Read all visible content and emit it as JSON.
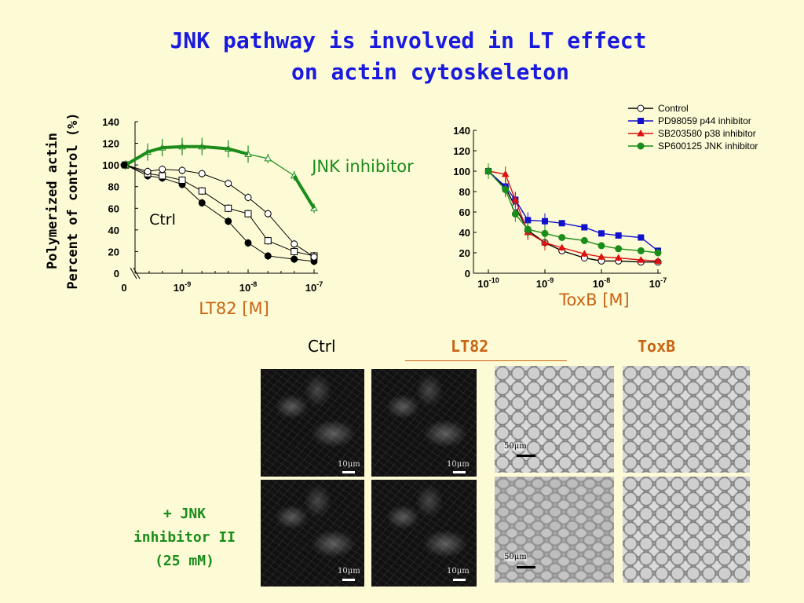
{
  "title_line1": "JNK pathway is involved in LT effect",
  "title_line2": "on actin cytoskeleton",
  "ylabel_line1": "Polymerized actin",
  "ylabel_line2": "Percent of control (%)",
  "images": {
    "col_ctrl": "Ctrl",
    "col_lt82": "LT82",
    "col_toxb": "ToxB",
    "row2_line1": "+ JNK",
    "row2_line2": "inhibitor II",
    "row2_line3": "(25 mM)",
    "scale_10um": "10μm",
    "scale_50um": "50μm"
  },
  "colors": {
    "title": "#1a1adf",
    "green": "#1a8c1a",
    "orange": "#c86414",
    "red": "#dd1111",
    "blue": "#1111cc",
    "background": "#fdfbd6"
  },
  "chart_data": [
    {
      "type": "line",
      "xlabel": "LT82 [M]",
      "ylabel": "Polymerized actin Percent of control (%)",
      "xscale": "log",
      "x_ticks": [
        "0",
        "10-9",
        "10-8",
        "10-7"
      ],
      "y_ticks": [
        0,
        20,
        40,
        60,
        80,
        100,
        120,
        140
      ],
      "ylim": [
        0,
        140
      ],
      "annotations": [
        "Ctrl",
        "JNK inhibitor"
      ],
      "series": [
        {
          "name": "",
          "marker": "filled-circle",
          "x": [
            0,
            3e-10,
            5e-10,
            1e-09,
            2e-09,
            5e-09,
            1e-08,
            2e-08,
            5e-08,
            1e-07
          ],
          "y": [
            100,
            90,
            88,
            82,
            65,
            48,
            28,
            16,
            13,
            11
          ]
        },
        {
          "name": "",
          "marker": "open-square",
          "x": [
            0,
            3e-10,
            5e-10,
            1e-09,
            2e-09,
            5e-09,
            1e-08,
            2e-08,
            5e-08,
            1e-07
          ],
          "y": [
            100,
            92,
            90,
            86,
            76,
            60,
            55,
            30,
            20,
            16
          ]
        },
        {
          "name": "",
          "marker": "open-circle",
          "x": [
            0,
            3e-10,
            5e-10,
            1e-09,
            2e-09,
            5e-09,
            1e-08,
            2e-08,
            5e-08,
            1e-07
          ],
          "y": [
            100,
            94,
            96,
            95,
            92,
            83,
            70,
            55,
            27,
            15
          ]
        },
        {
          "name": "JNK inhibitor",
          "marker": "open-triangle",
          "x": [
            0,
            3e-10,
            5e-10,
            1e-09,
            2e-09,
            5e-09,
            1e-08,
            2e-08,
            5e-08,
            1e-07
          ],
          "y": [
            100,
            112,
            116,
            117,
            117,
            115,
            110,
            106,
            90,
            60
          ]
        }
      ]
    },
    {
      "type": "line",
      "xlabel": "ToxB [M]",
      "xscale": "log",
      "x_ticks": [
        "10-10",
        "10-9",
        "10-8",
        "10-7"
      ],
      "y_ticks": [
        0,
        20,
        40,
        60,
        80,
        100,
        120,
        140
      ],
      "ylim": [
        0,
        140
      ],
      "legend_position": "top-right",
      "series": [
        {
          "name": "Control",
          "color": "#000000",
          "marker": "open-circle",
          "x": [
            1e-10,
            2e-10,
            3e-10,
            5e-10,
            1e-09,
            2e-09,
            5e-09,
            1e-08,
            2e-08,
            5e-08,
            1e-07
          ],
          "y": [
            100,
            84,
            65,
            42,
            30,
            22,
            15,
            12,
            12,
            11,
            11
          ]
        },
        {
          "name": "PD98059 p44 inhibitor",
          "color": "#1111cc",
          "marker": "filled-square",
          "x": [
            1e-10,
            2e-10,
            3e-10,
            5e-10,
            1e-09,
            2e-09,
            5e-09,
            1e-08,
            2e-08,
            5e-08,
            1e-07
          ],
          "y": [
            100,
            85,
            72,
            52,
            51,
            49,
            45,
            39,
            37,
            35,
            22
          ]
        },
        {
          "name": "SB203580 p38 inhibitor",
          "color": "#dd1111",
          "marker": "filled-triangle",
          "x": [
            1e-10,
            2e-10,
            3e-10,
            5e-10,
            1e-09,
            2e-09,
            5e-09,
            1e-08,
            2e-08,
            5e-08,
            1e-07
          ],
          "y": [
            100,
            97,
            72,
            40,
            30,
            25,
            19,
            16,
            15,
            13,
            12
          ]
        },
        {
          "name": "SP600125 JNK inhibitor",
          "color": "#1a8c1a",
          "marker": "filled-circle",
          "x": [
            1e-10,
            2e-10,
            3e-10,
            5e-10,
            1e-09,
            2e-09,
            5e-09,
            1e-08,
            2e-08,
            5e-08,
            1e-07
          ],
          "y": [
            100,
            82,
            58,
            43,
            39,
            35,
            32,
            27,
            24,
            22,
            20
          ]
        }
      ]
    }
  ]
}
